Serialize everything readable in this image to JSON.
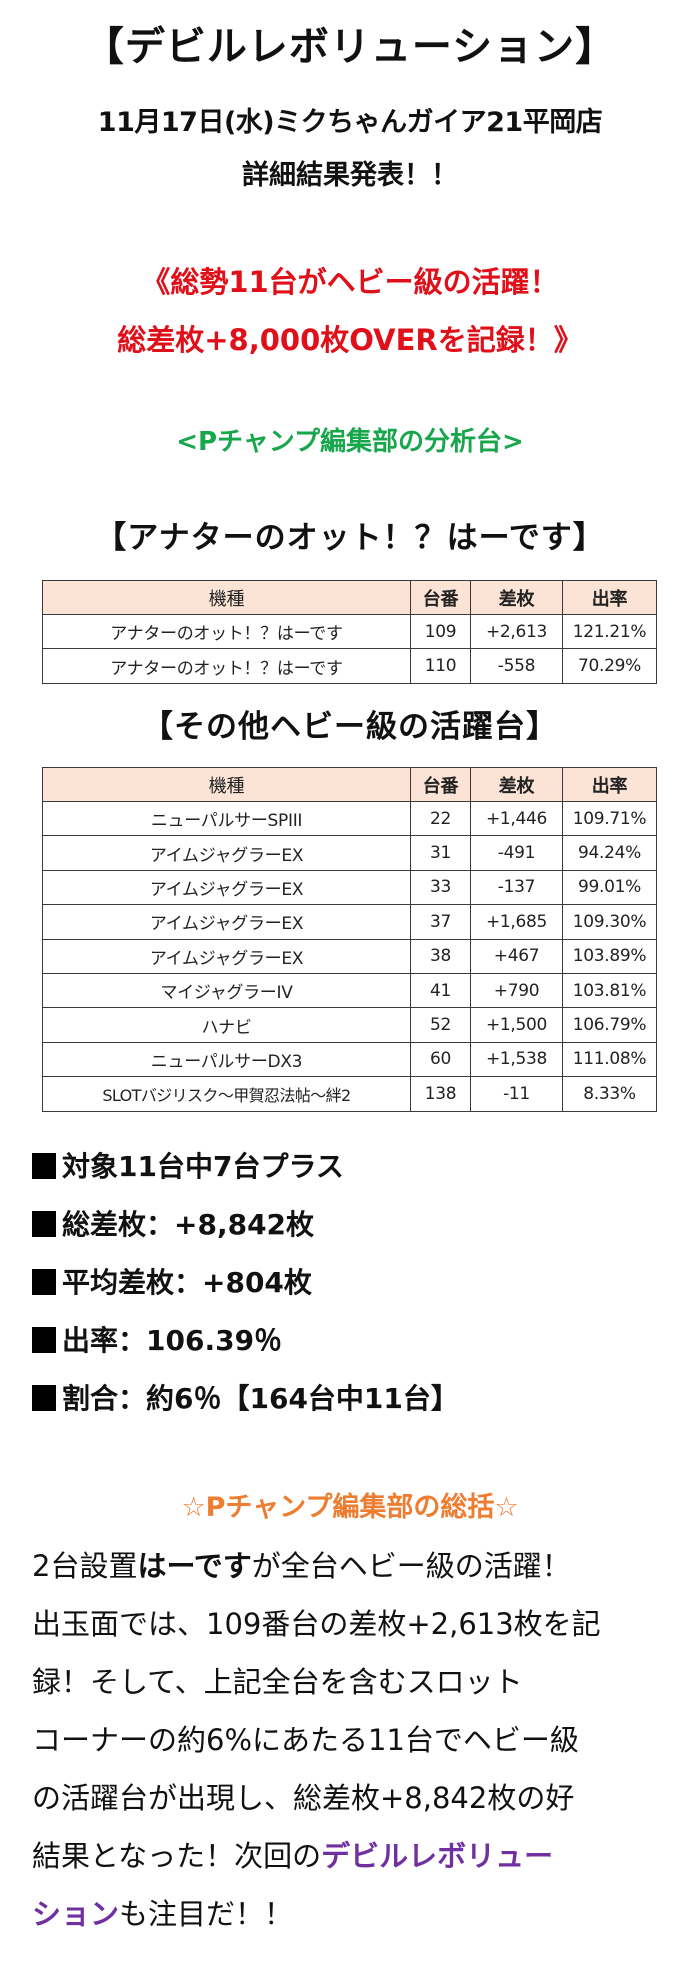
{
  "colors": {
    "text": "#111111",
    "headline_red": "#E0101A",
    "section_green": "#17A64B",
    "section_orange": "#ED7D31",
    "accent_purple": "#7030A0",
    "table_header_bg": "#FBE4D5",
    "table_border": "#3A3A3A"
  },
  "header": {
    "title": "【デビルレボリューション】",
    "subtitle_line1": "11月17日(水)ミクちゃんガイア21平岡店",
    "subtitle_line2": "詳細結果発表！！"
  },
  "headline": {
    "line1": "《総勢11台がヘビー級の活躍！",
    "line2": "総差枚+8,000枚OVERを記録！》"
  },
  "analysis_section": {
    "title": "<Pチャンプ編集部の分析台>"
  },
  "table_1": {
    "title": "【アナターのオット！？はーです】",
    "columns": [
      "機種",
      "台番",
      "差枚",
      "出率"
    ],
    "rows": [
      {
        "model": "アナターのオット！？はーです",
        "machine_no": "109",
        "diff": "+2,613",
        "rate": "121.21%"
      },
      {
        "model": "アナターのオット！？はーです",
        "machine_no": "110",
        "diff": "-558",
        "rate": "70.29%"
      }
    ]
  },
  "table_2": {
    "title": "【その他ヘビー級の活躍台】",
    "columns": [
      "機種",
      "台番",
      "差枚",
      "出率"
    ],
    "rows": [
      {
        "model": "ニューパルサーSPIII",
        "machine_no": "22",
        "diff": "+1,446",
        "rate": "109.71%"
      },
      {
        "model": "アイムジャグラーEX",
        "machine_no": "31",
        "diff": "-491",
        "rate": "94.24%"
      },
      {
        "model": "アイムジャグラーEX",
        "machine_no": "33",
        "diff": "-137",
        "rate": "99.01%"
      },
      {
        "model": "アイムジャグラーEX",
        "machine_no": "37",
        "diff": "+1,685",
        "rate": "109.30%"
      },
      {
        "model": "アイムジャグラーEX",
        "machine_no": "38",
        "diff": "+467",
        "rate": "103.89%"
      },
      {
        "model": "マイジャグラーIV",
        "machine_no": "41",
        "diff": "+790",
        "rate": "103.81%"
      },
      {
        "model": "ハナビ",
        "machine_no": "52",
        "diff": "+1,500",
        "rate": "106.79%"
      },
      {
        "model": "ニューパルサーDX3",
        "machine_no": "60",
        "diff": "+1,538",
        "rate": "111.08%"
      },
      {
        "model": "SLOTバジリスク～甲賀忍法帖～絆2",
        "machine_no": "138",
        "diff": "-11",
        "rate": "8.33%"
      }
    ]
  },
  "summary": {
    "items": [
      "対象11台中7台プラス",
      "総差枚：+8,842枚",
      "平均差枚：+804枚",
      "出率：106.39％",
      "割合：約6％【164台中11台】"
    ]
  },
  "review": {
    "title": "☆Pチャンプ編集部の総括☆",
    "lines": [
      {
        "pre": "2台設置",
        "bold": "はーです",
        "post": "が全台ヘビー級の活躍！"
      },
      {
        "text": "出玉面では、109番台の差枚+2,613枚を記"
      },
      {
        "text": "録！そして、上記全台を含むスロット"
      },
      {
        "text": "コーナーの約6%にあたる11台でヘビー級"
      },
      {
        "text": "の活躍台が出現し、総差枚+8,842枚の好"
      },
      {
        "pre": "結果となった！次回の",
        "purple": "デビルレボリュー"
      },
      {
        "purple": "ション",
        "post": "も注目だ！！"
      }
    ]
  }
}
